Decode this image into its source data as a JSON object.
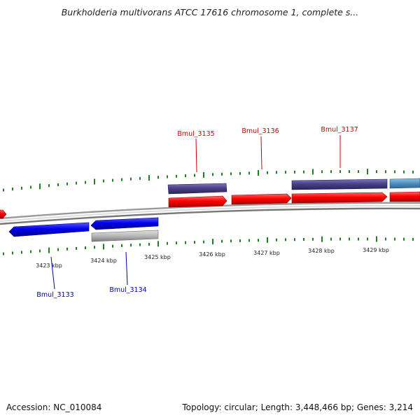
{
  "map": {
    "title": "Burkholderia multivorans ATCC 17616 chromosome 1, complete s...",
    "accession_text": "Accession: NC_010084",
    "stats_text": "Topology: circular; Length: 3,448,466 bp; Genes: 3,214"
  },
  "colors": {
    "forward_cds": "#ff0000",
    "reverse_cds": "#0000ee",
    "forward_other": "#4a4088",
    "reverse_other": "#b8b8b8",
    "forward_light": "#4f8fc0",
    "backbone": "#888888",
    "tick": "#208020",
    "forward_label": "#cc0000",
    "reverse_label": "#0000aa"
  },
  "scale": {
    "unit": "kbp",
    "labels": [
      "3423 kbp",
      "3424 kbp",
      "3425 kbp",
      "3426 kbp",
      "3427 kbp",
      "3428 kbp",
      "3429 kbp"
    ]
  },
  "genes": {
    "forward": [
      "Bmul_3135",
      "Bmul_3136",
      "Bmul_3137"
    ],
    "reverse": [
      "Bmul_3133",
      "Bmul_3134"
    ]
  }
}
